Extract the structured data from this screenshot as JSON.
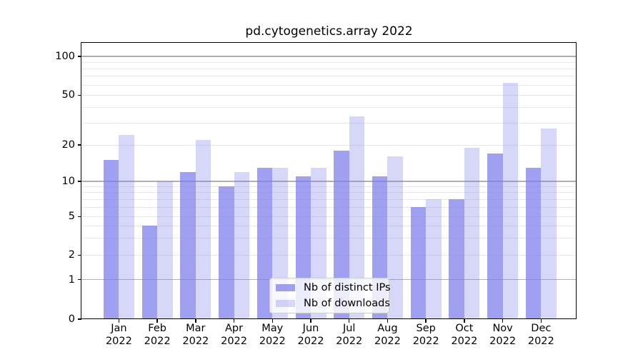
{
  "chart_data": {
    "type": "bar",
    "title": "pd.cytogenetics.array 2022",
    "categories": [
      "Jan",
      "Feb",
      "Mar",
      "Apr",
      "May",
      "Jun",
      "Jul",
      "Aug",
      "Sep",
      "Oct",
      "Nov",
      "Dec"
    ],
    "category_year": "2022",
    "series": [
      {
        "name": "Nb of distinct IPs",
        "values": [
          15,
          4,
          12,
          9,
          13,
          11,
          18,
          11,
          6,
          7,
          17,
          13
        ],
        "color": "rgba(124,124,236,0.72)"
      },
      {
        "name": "Nb of downloads",
        "values": [
          24,
          10,
          22,
          12,
          13,
          13,
          34,
          16,
          7,
          19,
          62,
          27
        ],
        "color": "rgba(124,124,236,0.30)"
      }
    ],
    "yscale": "symlog",
    "ylim": [
      0,
      127
    ],
    "ytick_values": [
      100,
      50,
      20,
      10,
      5,
      2,
      1,
      0
    ],
    "ytick_labels": [
      "100",
      "50",
      "20",
      "10",
      "5",
      "2",
      "1",
      "0"
    ],
    "major_grid_values": [
      1,
      10,
      100
    ],
    "minor_grid_values": [
      2,
      3,
      4,
      5,
      6,
      7,
      8,
      9,
      20,
      30,
      40,
      50,
      60,
      70,
      80,
      90
    ],
    "grid": true,
    "legend_position": "lower center",
    "colors": {
      "major_grid": "#b0b0b0",
      "minor_grid": "#e8e8e8",
      "axis": "#000000",
      "text": "#000000",
      "legend_border": "#cccccc",
      "legend_bg": "rgba(255,255,255,0.8)"
    }
  }
}
